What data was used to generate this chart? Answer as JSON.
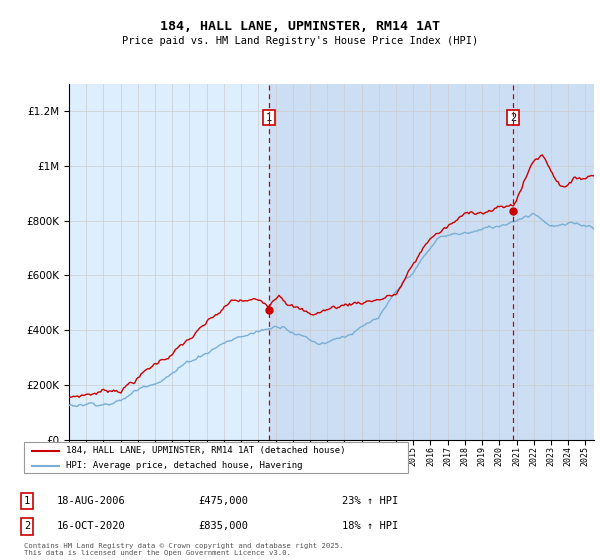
{
  "title": "184, HALL LANE, UPMINSTER, RM14 1AT",
  "subtitle": "Price paid vs. HM Land Registry's House Price Index (HPI)",
  "red_label": "184, HALL LANE, UPMINSTER, RM14 1AT (detached house)",
  "blue_label": "HPI: Average price, detached house, Havering",
  "annotation1_date": "18-AUG-2006",
  "annotation1_price": "£475,000",
  "annotation1_hpi": "23% ↑ HPI",
  "annotation2_date": "16-OCT-2020",
  "annotation2_price": "£835,000",
  "annotation2_hpi": "18% ↑ HPI",
  "vline1_x": 2006.625,
  "vline2_x": 2020.792,
  "marker1_y": 475000,
  "marker2_y": 835000,
  "ylim_min": 0,
  "ylim_max": 1300000,
  "xlim_min": 1995,
  "xlim_max": 2025.5,
  "red_color": "#cc0000",
  "blue_color": "#7aaed4",
  "bg_color": "#ddeeff",
  "highlight_color": "#c5d8f0",
  "plot_bg": "#ffffff",
  "grid_color": "#cccccc",
  "footer": "Contains HM Land Registry data © Crown copyright and database right 2025.\nThis data is licensed under the Open Government Licence v3.0.",
  "yticks": [
    0,
    200000,
    400000,
    600000,
    800000,
    1000000,
    1200000
  ],
  "ytick_labels": [
    "£0",
    "£200K",
    "£400K",
    "£600K",
    "£800K",
    "£1M",
    "£1.2M"
  ]
}
